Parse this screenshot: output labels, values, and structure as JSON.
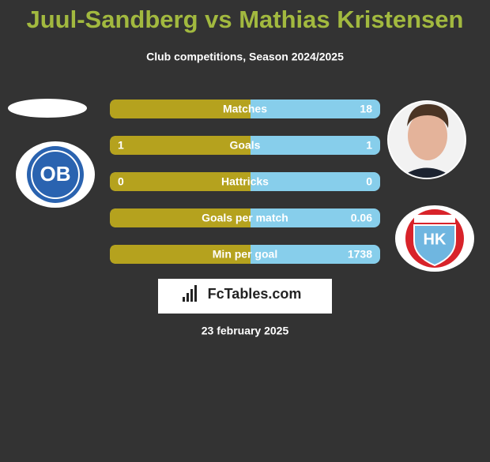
{
  "header": {
    "title": "Juul-Sandberg vs Mathias Kristensen",
    "subtitle": "Club competitions, Season 2024/2025"
  },
  "left_badge": "OB",
  "right_badge": "HK",
  "rows": [
    {
      "label": "Matches",
      "right": 18
    },
    {
      "label": "Goals",
      "left": 1,
      "right": 1
    },
    {
      "label": "Hattricks",
      "left": 0,
      "right": 0
    },
    {
      "label": "Goals per match",
      "right": 0.06
    },
    {
      "label": "Min per goal",
      "right": 1738
    }
  ],
  "logo": "FcTables.com",
  "date": "23 february 2025"
}
